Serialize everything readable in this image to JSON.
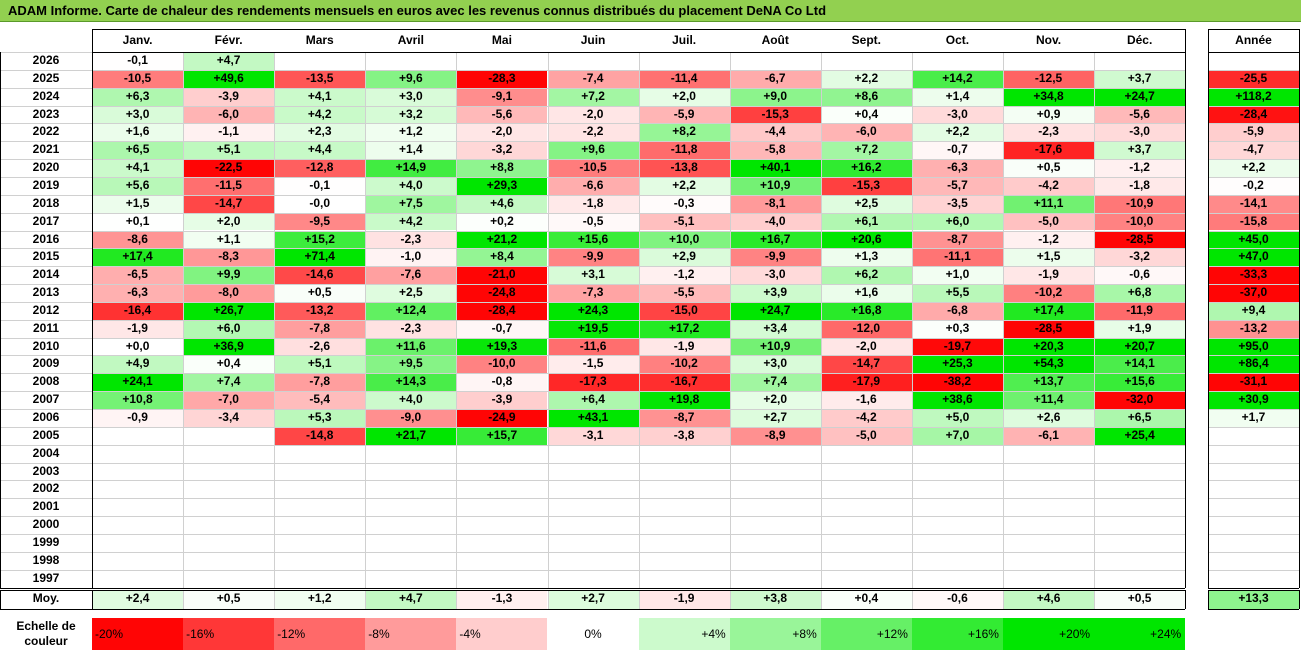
{
  "title": "ADAM Informe. Carte de chaleur des rendements mensuels en euros avec les revenus connus distribués du placement DeNA Co Ltd",
  "chart_data": {
    "type": "heatmap",
    "title": "ADAM Informe. Carte de chaleur des rendements mensuels en euros avec les revenus connus distribués du placement DeNA Co Ltd",
    "months": [
      "Janv.",
      "Févr.",
      "Mars",
      "Avril",
      "Mai",
      "Juin",
      "Juil.",
      "Août",
      "Sept.",
      "Oct.",
      "Nov.",
      "Déc."
    ],
    "year_header": "Année",
    "rows": [
      {
        "year": "2026",
        "values": [
          "-0,1",
          "+4,7",
          "",
          "",
          "",
          "",
          "",
          "",
          "",
          "",
          "",
          ""
        ],
        "annual": ""
      },
      {
        "year": "2025",
        "values": [
          "-10,5",
          "+49,6",
          "-13,5",
          "+9,6",
          "-28,3",
          "-7,4",
          "-11,4",
          "-6,7",
          "+2,2",
          "+14,2",
          "-12,5",
          "+3,7"
        ],
        "annual": "-25,5"
      },
      {
        "year": "2024",
        "values": [
          "+6,3",
          "-3,9",
          "+4,1",
          "+3,0",
          "-9,1",
          "+7,2",
          "+2,0",
          "+9,0",
          "+8,6",
          "+1,4",
          "+34,8",
          "+24,7"
        ],
        "annual": "+118,2"
      },
      {
        "year": "2023",
        "values": [
          "+3,0",
          "-6,0",
          "+4,2",
          "+3,2",
          "-5,6",
          "-2,0",
          "-5,9",
          "-15,3",
          "+0,4",
          "-3,0",
          "+0,9",
          "-5,6"
        ],
        "annual": "-28,4"
      },
      {
        "year": "2022",
        "values": [
          "+1,6",
          "-1,1",
          "+2,3",
          "+1,2",
          "-2,0",
          "-2,2",
          "+8,2",
          "-4,4",
          "-6,0",
          "+2,2",
          "-2,3",
          "-3,0"
        ],
        "annual": "-5,9"
      },
      {
        "year": "2021",
        "values": [
          "+6,5",
          "+5,1",
          "+4,4",
          "+1,4",
          "-3,2",
          "+9,6",
          "-11,8",
          "-5,8",
          "+7,2",
          "-0,7",
          "-17,6",
          "+3,7"
        ],
        "annual": "-4,7"
      },
      {
        "year": "2020",
        "values": [
          "+4,1",
          "-22,5",
          "-12,8",
          "+14,9",
          "+8,8",
          "-10,5",
          "-13,8",
          "+40,1",
          "+16,2",
          "-6,3",
          "+0,5",
          "-1,2"
        ],
        "annual": "+2,2"
      },
      {
        "year": "2019",
        "values": [
          "+5,6",
          "-11,5",
          "-0,1",
          "+4,0",
          "+29,3",
          "-6,6",
          "+2,2",
          "+10,9",
          "-15,3",
          "-5,7",
          "-4,2",
          "-1,8"
        ],
        "annual": "-0,2"
      },
      {
        "year": "2018",
        "values": [
          "+1,5",
          "-14,7",
          "-0,0",
          "+7,5",
          "+4,6",
          "-1,8",
          "-0,3",
          "-8,1",
          "+2,5",
          "-3,5",
          "+11,1",
          "-10,9"
        ],
        "annual": "-14,1"
      },
      {
        "year": "2017",
        "values": [
          "+0,1",
          "+2,0",
          "-9,5",
          "+4,2",
          "+0,2",
          "-0,5",
          "-5,1",
          "-4,0",
          "+6,1",
          "+6,0",
          "-5,0",
          "-10,0"
        ],
        "annual": "-15,8"
      },
      {
        "year": "2016",
        "values": [
          "-8,6",
          "+1,1",
          "+15,2",
          "-2,3",
          "+21,2",
          "+15,6",
          "+10,0",
          "+16,7",
          "+20,6",
          "-8,7",
          "-1,2",
          "-28,5"
        ],
        "annual": "+45,0"
      },
      {
        "year": "2015",
        "values": [
          "+17,4",
          "-8,3",
          "+71,4",
          "-1,0",
          "+8,4",
          "-9,9",
          "+2,9",
          "-9,9",
          "+1,3",
          "-11,1",
          "+1,5",
          "-3,2"
        ],
        "annual": "+47,0"
      },
      {
        "year": "2014",
        "values": [
          "-6,5",
          "+9,9",
          "-14,6",
          "-7,6",
          "-21,0",
          "+3,1",
          "-1,2",
          "-3,0",
          "+6,2",
          "+1,0",
          "-1,9",
          "-0,6"
        ],
        "annual": "-33,3"
      },
      {
        "year": "2013",
        "values": [
          "-6,3",
          "-8,0",
          "+0,5",
          "+2,5",
          "-24,8",
          "-7,3",
          "-5,5",
          "+3,9",
          "+1,6",
          "+5,5",
          "-10,2",
          "+6,8"
        ],
        "annual": "-37,0"
      },
      {
        "year": "2012",
        "values": [
          "-16,4",
          "+26,7",
          "-13,2",
          "+12,4",
          "-28,4",
          "+24,3",
          "-15,0",
          "+24,7",
          "+16,8",
          "-6,8",
          "+17,4",
          "-11,9"
        ],
        "annual": "+9,4"
      },
      {
        "year": "2011",
        "values": [
          "-1,9",
          "+6,0",
          "-7,8",
          "-2,3",
          "-0,7",
          "+19,5",
          "+17,2",
          "+3,4",
          "-12,0",
          "+0,3",
          "-28,5",
          "+1,9"
        ],
        "annual": "-13,2"
      },
      {
        "year": "2010",
        "values": [
          "+0,0",
          "+36,9",
          "-2,6",
          "+11,6",
          "+19,3",
          "-11,6",
          "-1,9",
          "+10,9",
          "-2,0",
          "-19,7",
          "+20,3",
          "+20,7"
        ],
        "annual": "+95,0"
      },
      {
        "year": "2009",
        "values": [
          "+4,9",
          "+0,4",
          "+5,1",
          "+9,5",
          "-10,0",
          "-1,5",
          "-10,2",
          "+3,0",
          "-14,7",
          "+25,3",
          "+54,3",
          "+14,1"
        ],
        "annual": "+86,4"
      },
      {
        "year": "2008",
        "values": [
          "+24,1",
          "+7,4",
          "-7,8",
          "+14,3",
          "-0,8",
          "-17,3",
          "-16,7",
          "+7,4",
          "-17,9",
          "-38,2",
          "+13,7",
          "+15,6"
        ],
        "annual": "-31,1"
      },
      {
        "year": "2007",
        "values": [
          "+10,8",
          "-7,0",
          "-5,4",
          "+4,0",
          "-3,9",
          "+6,4",
          "+19,8",
          "+2,0",
          "-1,6",
          "+38,6",
          "+11,4",
          "-32,0"
        ],
        "annual": "+30,9"
      },
      {
        "year": "2006",
        "values": [
          "-0,9",
          "-3,4",
          "+5,3",
          "-9,0",
          "-24,9",
          "+43,1",
          "-8,7",
          "+2,7",
          "-4,2",
          "+5,0",
          "+2,6",
          "+6,5"
        ],
        "annual": "+1,7"
      },
      {
        "year": "2005",
        "values": [
          "",
          "",
          "-14,8",
          "+21,7",
          "+15,7",
          "-3,1",
          "-3,8",
          "-8,9",
          "-5,0",
          "+7,0",
          "-6,1",
          "+25,4"
        ],
        "annual": ""
      },
      {
        "year": "2004",
        "values": [
          "",
          "",
          "",
          "",
          "",
          "",
          "",
          "",
          "",
          "",
          "",
          ""
        ],
        "annual": ""
      },
      {
        "year": "2003",
        "values": [
          "",
          "",
          "",
          "",
          "",
          "",
          "",
          "",
          "",
          "",
          "",
          ""
        ],
        "annual": ""
      },
      {
        "year": "2002",
        "values": [
          "",
          "",
          "",
          "",
          "",
          "",
          "",
          "",
          "",
          "",
          "",
          ""
        ],
        "annual": ""
      },
      {
        "year": "2001",
        "values": [
          "",
          "",
          "",
          "",
          "",
          "",
          "",
          "",
          "",
          "",
          "",
          ""
        ],
        "annual": ""
      },
      {
        "year": "2000",
        "values": [
          "",
          "",
          "",
          "",
          "",
          "",
          "",
          "",
          "",
          "",
          "",
          ""
        ],
        "annual": ""
      },
      {
        "year": "1999",
        "values": [
          "",
          "",
          "",
          "",
          "",
          "",
          "",
          "",
          "",
          "",
          "",
          ""
        ],
        "annual": ""
      },
      {
        "year": "1998",
        "values": [
          "",
          "",
          "",
          "",
          "",
          "",
          "",
          "",
          "",
          "",
          "",
          ""
        ],
        "annual": ""
      },
      {
        "year": "1997",
        "values": [
          "",
          "",
          "",
          "",
          "",
          "",
          "",
          "",
          "",
          "",
          "",
          ""
        ],
        "annual": ""
      }
    ],
    "average": {
      "label": "Moy.",
      "values": [
        "+2,4",
        "+0,5",
        "+1,2",
        "+4,7",
        "-1,3",
        "+2,7",
        "-1,9",
        "+3,8",
        "+0,4",
        "-0,6",
        "+4,6",
        "+0,5"
      ],
      "annual": "+13,3"
    },
    "color_scale": {
      "label": "Echelle de couleur",
      "stops": [
        "-20%",
        "-16%",
        "-12%",
        "-8%",
        "-4%",
        "0%",
        "+4%",
        "+8%",
        "+12%",
        "+16%",
        "+20%",
        "+24%"
      ],
      "negative_color": "#ff0000",
      "positive_color": "#00e600",
      "neutral_color": "#ffffff"
    }
  }
}
